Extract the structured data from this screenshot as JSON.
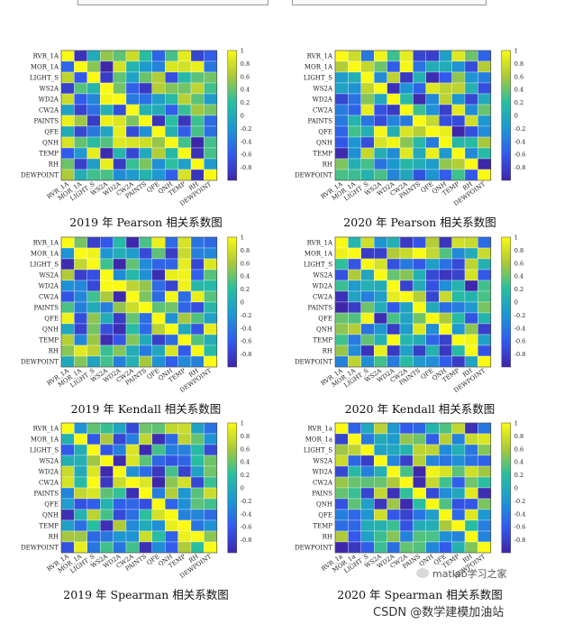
{
  "chart_data": [
    {
      "type": "heatmap",
      "title": "2019 年 Pearson 相关系数图",
      "labels": [
        "RVR_1A",
        "MOR_1A",
        "LIGHT_S",
        "WS2A",
        "WD2A",
        "CW2A",
        "PAINTS",
        "QFE",
        "QNH",
        "TEMP",
        "RH",
        "DEWPOINT"
      ],
      "colorbar_ticks": [
        "1",
        "0.8",
        "0.6",
        "0.4",
        "0.2",
        "0",
        "-0.2",
        "-0.4",
        "-0.6",
        "-0.8"
      ],
      "zlim": [
        -1,
        1
      ]
    },
    {
      "type": "heatmap",
      "title": "2020 年 Pearson 相关系数图",
      "labels": [
        "RVR_1A",
        "MOR_1A",
        "LIGHT_S",
        "WS2A",
        "WD2A",
        "CW2A",
        "PAINTS",
        "QFE",
        "QNH",
        "TEMP",
        "RH",
        "DEWPOINT"
      ],
      "colorbar_ticks": [
        "1",
        "0.8",
        "0.6",
        "0.4",
        "0.2",
        "0",
        "-0.2",
        "-0.4",
        "-0.6",
        "-0.8"
      ],
      "zlim": [
        -1,
        1
      ]
    },
    {
      "type": "heatmap",
      "title": "2019 年 Kendall 相关系数图",
      "labels": [
        "RVR_1A",
        "MOR_1A",
        "LIGHT_S",
        "WS2A",
        "WD2A",
        "CW2A",
        "PAINTS",
        "QFE",
        "QNH",
        "TEMP",
        "RH",
        "DEWPOINT"
      ],
      "colorbar_ticks": [
        "1",
        "0.8",
        "0.6",
        "0.4",
        "0.2",
        "0",
        "-0.2",
        "-0.4",
        "-0.6",
        "-0.8"
      ],
      "zlim": [
        -1,
        1
      ]
    },
    {
      "type": "heatmap",
      "title": "2020 年 Kendall 相关系数图",
      "labels": [
        "RVR_1A",
        "MOR_1A",
        "LIGHT_S",
        "WS2A",
        "WD2A",
        "CW2A",
        "PAINTS",
        "QFE",
        "QNH",
        "TEMP",
        "RH",
        "DEWPOINT"
      ],
      "colorbar_ticks": [
        "1",
        "0.8",
        "0.6",
        "0.4",
        "0.2",
        "0",
        "-0.2",
        "-0.4",
        "-0.6",
        "-0.8"
      ],
      "zlim": [
        -1,
        1
      ]
    },
    {
      "type": "heatmap",
      "title": "2019 年 Spearman 相关系数图",
      "labels": [
        "RVR_1A",
        "MOR_1A",
        "LIGHT_S",
        "WS2A",
        "WD2A",
        "CW2A",
        "PAINTS",
        "QFE",
        "QNH",
        "TEMP",
        "RH",
        "DEWPOINT"
      ],
      "colorbar_ticks": [
        "1",
        "0.8",
        "0.6",
        "0.4",
        "0.2",
        "0",
        "-0.2",
        "-0.4",
        "-0.6",
        "-0.8"
      ],
      "zlim": [
        -1,
        1
      ]
    },
    {
      "type": "heatmap",
      "title": "2020 年 Spearman 相关系数图",
      "labels": [
        "RVR_1a",
        "MOR_1a",
        "LIGHT_S",
        "WS2A",
        "WD2A",
        "CW2A",
        "PAINS",
        "QNH",
        "QFE",
        "TEMP",
        "RH",
        "DEWPOINT"
      ],
      "colorbar_ticks": [
        "1",
        "0.8",
        "0.6",
        "0.4",
        "0.2",
        "0",
        "-0.2",
        "-0.4",
        "-0.6",
        "-0.8"
      ],
      "zlim": [
        -1,
        1
      ]
    }
  ],
  "watermark": "matlab学习之家",
  "credit": "CSDN @数学建模加油站"
}
